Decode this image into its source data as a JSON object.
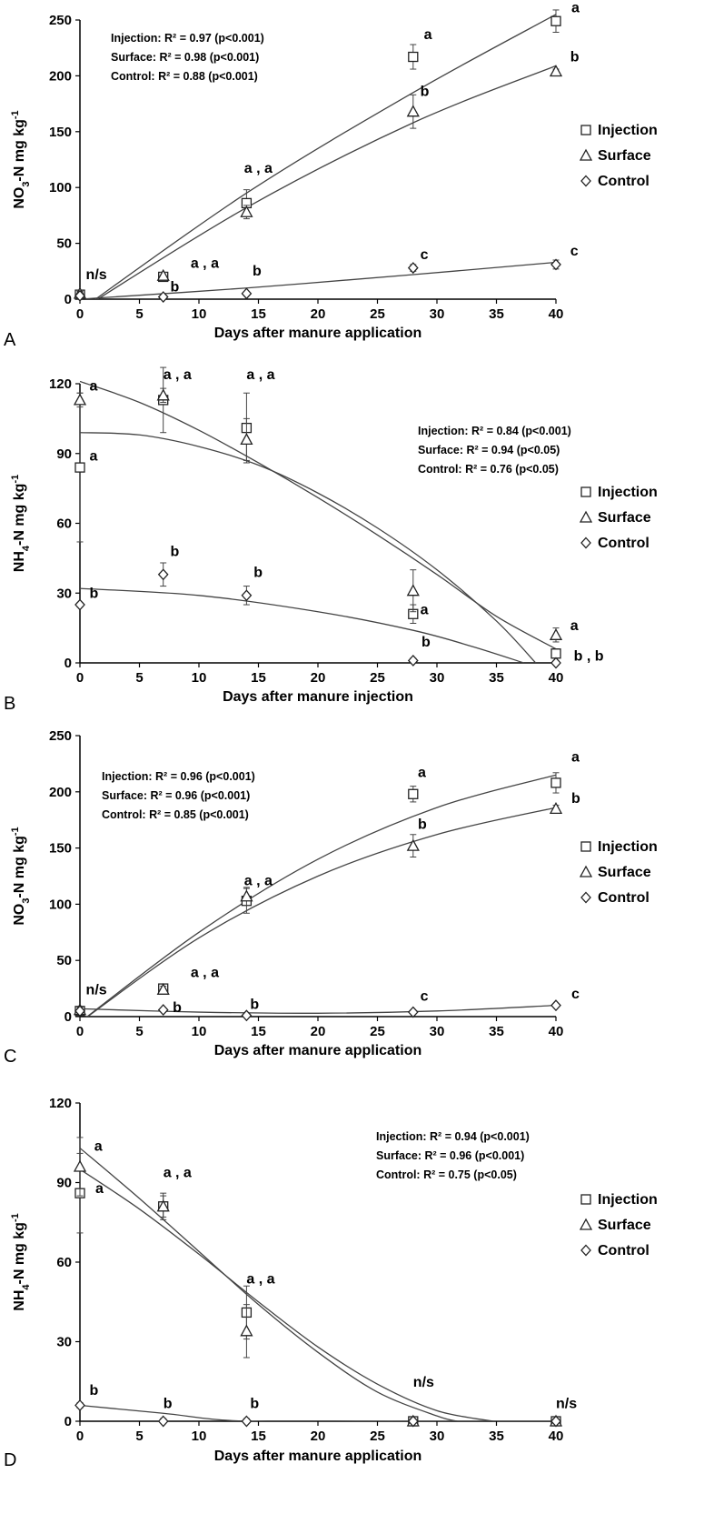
{
  "chart_data": [
    {
      "panel": "A",
      "type": "scatter",
      "xlabel": "Days after manure application",
      "ylabel": "NO3-N mg kg-1",
      "ylabel_parts": {
        "pre": "NO",
        "sub": "3",
        "mid": "-N mg kg",
        "sup": "-1"
      },
      "xlim": [
        0,
        40
      ],
      "ylim": [
        0,
        250
      ],
      "xticks": [
        0,
        5,
        10,
        15,
        20,
        25,
        30,
        35,
        40
      ],
      "yticks": [
        0,
        50,
        100,
        150,
        200,
        250
      ],
      "grid": false,
      "legend_position": "right",
      "stats": [
        "Injection: R² = 0.97 (p<0.001)",
        "Surface: R² = 0.98 (p<0.001)",
        "Control: R² = 0.88 (p<0.001)"
      ],
      "series": [
        {
          "name": "Injection",
          "marker": "square",
          "points": [
            {
              "x": 0,
              "y": 4,
              "err": 2
            },
            {
              "x": 7,
              "y": 20,
              "err": 3
            },
            {
              "x": 14,
              "y": 86,
              "err": 12
            },
            {
              "x": 28,
              "y": 217,
              "err": 11
            },
            {
              "x": 40,
              "y": 249,
              "err": 10
            }
          ],
          "fit": [
            {
              "x": 0,
              "y": -10
            },
            {
              "x": 14,
              "y": 95
            },
            {
              "x": 28,
              "y": 185
            },
            {
              "x": 40,
              "y": 255
            }
          ]
        },
        {
          "name": "Surface",
          "marker": "triangle",
          "points": [
            {
              "x": 0,
              "y": 5,
              "err": 2
            },
            {
              "x": 7,
              "y": 21,
              "err": 3
            },
            {
              "x": 14,
              "y": 78,
              "err": 6
            },
            {
              "x": 28,
              "y": 168,
              "err": 15
            },
            {
              "x": 40,
              "y": 204,
              "err": 2
            }
          ],
          "fit": [
            {
              "x": 0,
              "y": -10
            },
            {
              "x": 14,
              "y": 82
            },
            {
              "x": 28,
              "y": 158
            },
            {
              "x": 40,
              "y": 209
            }
          ]
        },
        {
          "name": "Control",
          "marker": "diamond",
          "points": [
            {
              "x": 0,
              "y": 3,
              "err": 1
            },
            {
              "x": 7,
              "y": 2,
              "err": 1
            },
            {
              "x": 14,
              "y": 5,
              "err": 1
            },
            {
              "x": 28,
              "y": 28,
              "err": 3
            },
            {
              "x": 40,
              "y": 31,
              "err": 4
            }
          ],
          "fit": [
            {
              "x": 0,
              "y": 0
            },
            {
              "x": 14,
              "y": 10
            },
            {
              "x": 28,
              "y": 22
            },
            {
              "x": 40,
              "y": 33
            }
          ]
        }
      ],
      "annotations": [
        {
          "text": "n/s",
          "x": 0.5,
          "y": 18
        },
        {
          "text": "a , a",
          "x": 9.3,
          "y": 28
        },
        {
          "text": "b",
          "x": 7.6,
          "y": 7
        },
        {
          "text": "a , a",
          "x": 13.8,
          "y": 113
        },
        {
          "text": "b",
          "x": 14.5,
          "y": 21
        },
        {
          "text": "a",
          "x": 28.9,
          "y": 233
        },
        {
          "text": "b",
          "x": 28.6,
          "y": 182
        },
        {
          "text": "c",
          "x": 28.6,
          "y": 36
        },
        {
          "text": "a",
          "x": 41.3,
          "y": 257
        },
        {
          "text": "b",
          "x": 41.2,
          "y": 213
        },
        {
          "text": "c",
          "x": 41.2,
          "y": 39
        }
      ]
    },
    {
      "panel": "B",
      "type": "scatter",
      "xlabel": "Days after manure injection",
      "ylabel": "NH4-N mg kg-1",
      "ylabel_parts": {
        "pre": "NH",
        "sub": "4",
        "mid": "-N mg kg",
        "sup": "-1"
      },
      "xlim": [
        0,
        40
      ],
      "ylim": [
        0,
        120
      ],
      "xticks": [
        0,
        5,
        10,
        15,
        20,
        25,
        30,
        35,
        40
      ],
      "yticks": [
        0,
        30,
        60,
        90,
        120
      ],
      "grid": false,
      "legend_position": "right",
      "stats": [
        "Injection: R² = 0.84 (p<0.001)",
        "Surface: R² = 0.94 (p<0.05)",
        "Control: R² = 0.76 (p<0.05)"
      ],
      "series": [
        {
          "name": "Injection",
          "marker": "square",
          "points": [
            {
              "x": 0,
              "y": 84,
              "err": 32
            },
            {
              "x": 7,
              "y": 113,
              "err": 14
            },
            {
              "x": 14,
              "y": 101,
              "err": 15
            },
            {
              "x": 28,
              "y": 21,
              "err": 4
            },
            {
              "x": 40,
              "y": 4,
              "err": 2
            }
          ],
          "fit": [
            {
              "x": 0,
              "y": 99
            },
            {
              "x": 5,
              "y": 98
            },
            {
              "x": 10,
              "y": 93
            },
            {
              "x": 15,
              "y": 85
            },
            {
              "x": 20,
              "y": 73
            },
            {
              "x": 25,
              "y": 58
            },
            {
              "x": 30,
              "y": 40
            },
            {
              "x": 35,
              "y": 18
            },
            {
              "x": 38.3,
              "y": 0
            }
          ]
        },
        {
          "name": "Surface",
          "marker": "triangle",
          "points": [
            {
              "x": 0,
              "y": 113,
              "err": 3
            },
            {
              "x": 7,
              "y": 115,
              "err": 3
            },
            {
              "x": 14,
              "y": 96,
              "err": 9
            },
            {
              "x": 28,
              "y": 31,
              "err": 9
            },
            {
              "x": 40,
              "y": 12,
              "err": 3
            }
          ],
          "fit": [
            {
              "x": 0,
              "y": 121
            },
            {
              "x": 5,
              "y": 112
            },
            {
              "x": 10,
              "y": 100
            },
            {
              "x": 15,
              "y": 86
            },
            {
              "x": 20,
              "y": 71
            },
            {
              "x": 25,
              "y": 55
            },
            {
              "x": 30,
              "y": 38
            },
            {
              "x": 35,
              "y": 20
            },
            {
              "x": 40,
              "y": 6
            }
          ]
        },
        {
          "name": "Control",
          "marker": "diamond",
          "points": [
            {
              "x": 0,
              "y": 25,
              "err": 1
            },
            {
              "x": 7,
              "y": 38,
              "err": 5
            },
            {
              "x": 14,
              "y": 29,
              "err": 4
            },
            {
              "x": 28,
              "y": 1,
              "err": 1
            },
            {
              "x": 40,
              "y": 0,
              "err": 1
            }
          ],
          "fit": [
            {
              "x": 0,
              "y": 32
            },
            {
              "x": 10,
              "y": 29
            },
            {
              "x": 20,
              "y": 22
            },
            {
              "x": 28,
              "y": 14
            },
            {
              "x": 33,
              "y": 7
            },
            {
              "x": 37.3,
              "y": 0
            }
          ]
        }
      ],
      "annotations": [
        {
          "text": "a",
          "x": 0.8,
          "y": 117
        },
        {
          "text": "a",
          "x": 0.8,
          "y": 87
        },
        {
          "text": "b",
          "x": 0.8,
          "y": 28
        },
        {
          "text": "a , a",
          "x": 7,
          "y": 122
        },
        {
          "text": "b",
          "x": 7.6,
          "y": 46
        },
        {
          "text": "a , a",
          "x": 14,
          "y": 122
        },
        {
          "text": "b",
          "x": 14.6,
          "y": 37
        },
        {
          "text": "a",
          "x": 28.6,
          "y": 21
        },
        {
          "text": "b",
          "x": 28.7,
          "y": 7
        },
        {
          "text": "a",
          "x": 41.2,
          "y": 14
        },
        {
          "text": "b , b",
          "x": 41.5,
          "y": 1
        }
      ]
    },
    {
      "panel": "C",
      "type": "scatter",
      "xlabel": "Days after manure application",
      "ylabel": "NO3-N mg kg-1",
      "ylabel_parts": {
        "pre": "NO",
        "sub": "3",
        "mid": "-N mg kg",
        "sup": "-1"
      },
      "xlim": [
        0,
        40
      ],
      "ylim": [
        0,
        250
      ],
      "xticks": [
        0,
        5,
        10,
        15,
        20,
        25,
        30,
        35,
        40
      ],
      "yticks": [
        0,
        50,
        100,
        150,
        200,
        250
      ],
      "grid": false,
      "legend_position": "right",
      "stats": [
        "Injection: R² = 0.96 (p<0.001)",
        "Surface: R² = 0.96 (p<0.001)",
        "Control: R² = 0.85 (p<0.001)"
      ],
      "series": [
        {
          "name": "Injection",
          "marker": "square",
          "points": [
            {
              "x": 0,
              "y": 5,
              "err": 2
            },
            {
              "x": 7,
              "y": 25,
              "err": 3
            },
            {
              "x": 14,
              "y": 103,
              "err": 11
            },
            {
              "x": 28,
              "y": 198,
              "err": 7
            },
            {
              "x": 40,
              "y": 208,
              "err": 9
            }
          ],
          "fit": [
            {
              "x": 0,
              "y": -5
            },
            {
              "x": 10,
              "y": 75
            },
            {
              "x": 20,
              "y": 140
            },
            {
              "x": 30,
              "y": 186
            },
            {
              "x": 40,
              "y": 215
            }
          ]
        },
        {
          "name": "Surface",
          "marker": "triangle",
          "points": [
            {
              "x": 0,
              "y": 6,
              "err": 2
            },
            {
              "x": 7,
              "y": 24,
              "err": 3
            },
            {
              "x": 14,
              "y": 107,
              "err": 8
            },
            {
              "x": 28,
              "y": 152,
              "err": 10
            },
            {
              "x": 40,
              "y": 185,
              "err": 3
            }
          ],
          "fit": [
            {
              "x": 0,
              "y": -5
            },
            {
              "x": 10,
              "y": 70
            },
            {
              "x": 20,
              "y": 125
            },
            {
              "x": 30,
              "y": 162
            },
            {
              "x": 40,
              "y": 186
            }
          ]
        },
        {
          "name": "Control",
          "marker": "diamond",
          "points": [
            {
              "x": 0,
              "y": 5,
              "err": 1
            },
            {
              "x": 7,
              "y": 6,
              "err": 1
            },
            {
              "x": 14,
              "y": 1,
              "err": 1
            },
            {
              "x": 28,
              "y": 4,
              "err": 1
            },
            {
              "x": 40,
              "y": 10,
              "err": 1
            }
          ],
          "fit": [
            {
              "x": 0,
              "y": 7
            },
            {
              "x": 10,
              "y": 4
            },
            {
              "x": 20,
              "y": 3
            },
            {
              "x": 30,
              "y": 5
            },
            {
              "x": 40,
              "y": 10
            }
          ]
        }
      ],
      "annotations": [
        {
          "text": "n/s",
          "x": 0.5,
          "y": 20
        },
        {
          "text": "a , a",
          "x": 9.3,
          "y": 35
        },
        {
          "text": "b",
          "x": 7.8,
          "y": 4
        },
        {
          "text": "a , a",
          "x": 13.8,
          "y": 117
        },
        {
          "text": "b",
          "x": 14.3,
          "y": 7
        },
        {
          "text": "a",
          "x": 28.4,
          "y": 213
        },
        {
          "text": "b",
          "x": 28.4,
          "y": 167
        },
        {
          "text": "c",
          "x": 28.6,
          "y": 14
        },
        {
          "text": "a",
          "x": 41.3,
          "y": 227
        },
        {
          "text": "b",
          "x": 41.3,
          "y": 190
        },
        {
          "text": "c",
          "x": 41.3,
          "y": 16
        }
      ]
    },
    {
      "panel": "D",
      "type": "scatter",
      "xlabel": "Days after manure application",
      "ylabel": "NH4-N mg kg-1",
      "ylabel_parts": {
        "pre": "NH",
        "sub": "4",
        "mid": "-N mg kg",
        "sup": "-1"
      },
      "xlim": [
        0,
        40
      ],
      "ylim": [
        0,
        120
      ],
      "xticks": [
        0,
        5,
        10,
        15,
        20,
        25,
        30,
        35,
        40
      ],
      "yticks": [
        0,
        30,
        60,
        90,
        120
      ],
      "grid": false,
      "legend_position": "right",
      "stats": [
        "Injection: R² = 0.94 (p<0.001)",
        "Surface: R² = 0.96 (p<0.001)",
        "Control: R² = 0.75 (p<0.05)"
      ],
      "series": [
        {
          "name": "Injection",
          "marker": "square",
          "points": [
            {
              "x": 0,
              "y": 86,
              "err": 15
            },
            {
              "x": 7,
              "y": 81,
              "err": 5
            },
            {
              "x": 14,
              "y": 41,
              "err": 10
            },
            {
              "x": 28,
              "y": 0,
              "err": 1
            },
            {
              "x": 40,
              "y": 0,
              "err": 1
            }
          ],
          "fit": [
            {
              "x": 0,
              "y": 95
            },
            {
              "x": 5,
              "y": 80
            },
            {
              "x": 10,
              "y": 63
            },
            {
              "x": 15,
              "y": 45
            },
            {
              "x": 20,
              "y": 28
            },
            {
              "x": 25,
              "y": 14
            },
            {
              "x": 30,
              "y": 4
            },
            {
              "x": 34.7,
              "y": 0
            }
          ]
        },
        {
          "name": "Surface",
          "marker": "triangle",
          "points": [
            {
              "x": 0,
              "y": 96,
              "err": 11
            },
            {
              "x": 7,
              "y": 81,
              "err": 4
            },
            {
              "x": 14,
              "y": 34,
              "err": 10
            },
            {
              "x": 28,
              "y": 0,
              "err": 1
            },
            {
              "x": 40,
              "y": 0,
              "err": 1
            }
          ],
          "fit": [
            {
              "x": 0,
              "y": 103
            },
            {
              "x": 5,
              "y": 84
            },
            {
              "x": 10,
              "y": 64
            },
            {
              "x": 15,
              "y": 44
            },
            {
              "x": 20,
              "y": 26
            },
            {
              "x": 25,
              "y": 11
            },
            {
              "x": 30,
              "y": 2
            },
            {
              "x": 31.7,
              "y": 0
            }
          ]
        },
        {
          "name": "Control",
          "marker": "diamond",
          "points": [
            {
              "x": 0,
              "y": 6,
              "err": 1
            },
            {
              "x": 7,
              "y": 0,
              "err": 1
            },
            {
              "x": 14,
              "y": 0,
              "err": 1
            },
            {
              "x": 28,
              "y": 0,
              "err": 1
            },
            {
              "x": 40,
              "y": 0,
              "err": 1
            }
          ],
          "fit": [
            {
              "x": 0,
              "y": 6
            },
            {
              "x": 7,
              "y": 3
            },
            {
              "x": 14,
              "y": 0
            },
            {
              "x": 28,
              "y": 0
            },
            {
              "x": 40,
              "y": 0
            }
          ]
        }
      ],
      "annotations": [
        {
          "text": "a",
          "x": 1.2,
          "y": 102
        },
        {
          "text": "a",
          "x": 1.3,
          "y": 86
        },
        {
          "text": "b",
          "x": 0.8,
          "y": 10
        },
        {
          "text": "a , a",
          "x": 7.0,
          "y": 92
        },
        {
          "text": "b",
          "x": 7.0,
          "y": 5
        },
        {
          "text": "a , a",
          "x": 14.0,
          "y": 52
        },
        {
          "text": "b",
          "x": 14.3,
          "y": 5
        },
        {
          "text": "n/s",
          "x": 28.0,
          "y": 13
        },
        {
          "text": "n/s",
          "x": 40.0,
          "y": 5
        }
      ]
    }
  ]
}
